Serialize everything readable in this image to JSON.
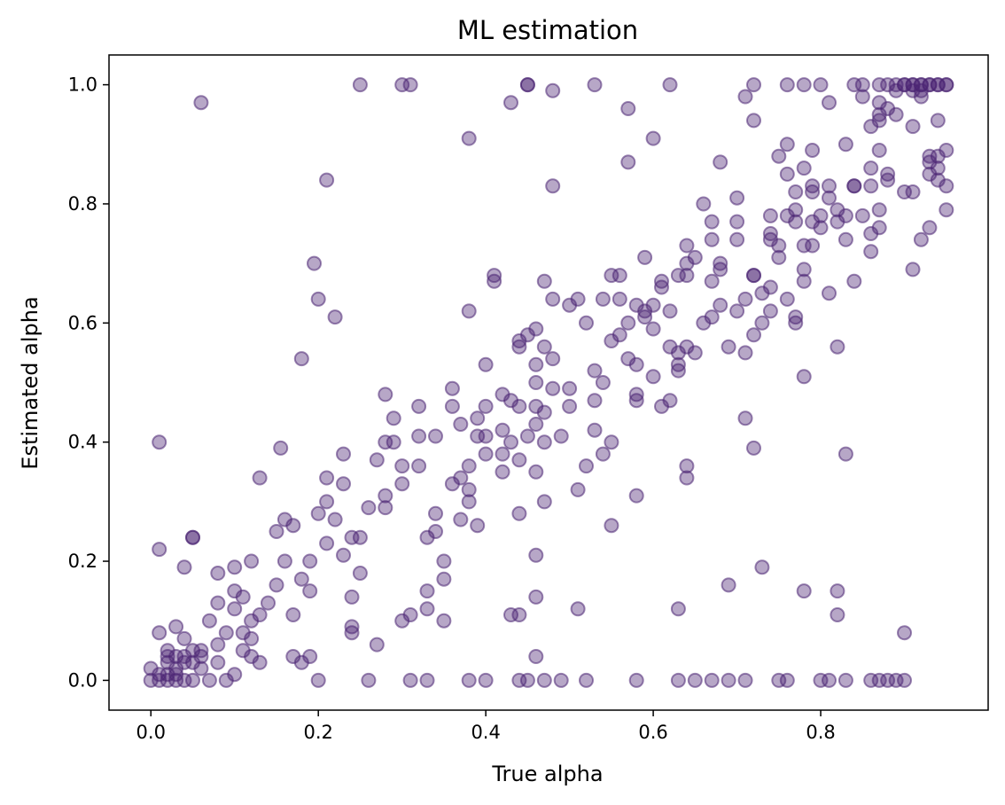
{
  "chart_data": {
    "type": "scatter",
    "title": "ML estimation",
    "xlabel": "True alpha",
    "ylabel": "Estimated alpha",
    "xlim": [
      -0.05,
      1.0
    ],
    "ylim": [
      -0.05,
      1.05
    ],
    "xticks": [
      "0.0",
      "0.2",
      "0.4",
      "0.6",
      "0.8"
    ],
    "yticks": [
      "0.0",
      "0.2",
      "0.4",
      "0.6",
      "0.8",
      "1.0"
    ],
    "grid": false,
    "marker_color": "#4b2472",
    "points": [
      [
        0.0,
        0.02
      ],
      [
        0.0,
        0.0
      ],
      [
        0.01,
        0.0
      ],
      [
        0.01,
        0.01
      ],
      [
        0.02,
        0.0
      ],
      [
        0.02,
        0.01
      ],
      [
        0.02,
        0.04
      ],
      [
        0.02,
        0.05
      ],
      [
        0.03,
        0.0
      ],
      [
        0.03,
        0.02
      ],
      [
        0.03,
        0.04
      ],
      [
        0.03,
        0.09
      ],
      [
        0.04,
        0.0
      ],
      [
        0.04,
        0.04
      ],
      [
        0.04,
        0.07
      ],
      [
        0.05,
        0.03
      ],
      [
        0.05,
        0.05
      ],
      [
        0.06,
        0.02
      ],
      [
        0.06,
        0.04
      ],
      [
        0.07,
        0.1
      ],
      [
        0.08,
        0.03
      ],
      [
        0.08,
        0.06
      ],
      [
        0.09,
        0.08
      ],
      [
        0.1,
        0.01
      ],
      [
        0.1,
        0.12
      ],
      [
        0.11,
        0.05
      ],
      [
        0.11,
        0.08
      ],
      [
        0.12,
        0.04
      ],
      [
        0.12,
        0.07
      ],
      [
        0.13,
        0.03
      ],
      [
        0.01,
        0.08
      ],
      [
        0.02,
        0.03
      ],
      [
        0.03,
        0.01
      ],
      [
        0.04,
        0.03
      ],
      [
        0.05,
        0.0
      ],
      [
        0.06,
        0.05
      ],
      [
        0.07,
        0.0
      ],
      [
        0.08,
        0.13
      ],
      [
        0.09,
        0.0
      ],
      [
        0.1,
        0.15
      ],
      [
        0.11,
        0.14
      ],
      [
        0.12,
        0.1
      ],
      [
        0.13,
        0.11
      ],
      [
        0.14,
        0.13
      ],
      [
        0.15,
        0.16
      ],
      [
        0.16,
        0.2
      ],
      [
        0.17,
        0.04
      ],
      [
        0.18,
        0.03
      ],
      [
        0.19,
        0.04
      ],
      [
        0.2,
        0.0
      ],
      [
        0.01,
        0.22
      ],
      [
        0.01,
        0.4
      ],
      [
        0.05,
        0.24
      ],
      [
        0.05,
        0.24
      ],
      [
        0.04,
        0.19
      ],
      [
        0.08,
        0.18
      ],
      [
        0.1,
        0.19
      ],
      [
        0.12,
        0.2
      ],
      [
        0.13,
        0.34
      ],
      [
        0.15,
        0.25
      ],
      [
        0.06,
        0.97
      ],
      [
        0.155,
        0.39
      ],
      [
        0.16,
        0.27
      ],
      [
        0.17,
        0.26
      ],
      [
        0.17,
        0.11
      ],
      [
        0.18,
        0.17
      ],
      [
        0.18,
        0.54
      ],
      [
        0.19,
        0.2
      ],
      [
        0.19,
        0.15
      ],
      [
        0.2,
        0.28
      ],
      [
        0.21,
        0.23
      ],
      [
        0.21,
        0.3
      ],
      [
        0.2,
        0.64
      ],
      [
        0.195,
        0.7
      ],
      [
        0.21,
        0.34
      ],
      [
        0.22,
        0.61
      ],
      [
        0.22,
        0.27
      ],
      [
        0.23,
        0.21
      ],
      [
        0.23,
        0.33
      ],
      [
        0.23,
        0.38
      ],
      [
        0.21,
        0.84
      ],
      [
        0.24,
        0.24
      ],
      [
        0.24,
        0.14
      ],
      [
        0.24,
        0.09
      ],
      [
        0.24,
        0.08
      ],
      [
        0.25,
        0.18
      ],
      [
        0.25,
        0.24
      ],
      [
        0.26,
        0.0
      ],
      [
        0.26,
        0.29
      ],
      [
        0.27,
        0.37
      ],
      [
        0.25,
        1.0
      ],
      [
        0.27,
        0.06
      ],
      [
        0.28,
        0.29
      ],
      [
        0.28,
        0.31
      ],
      [
        0.28,
        0.48
      ],
      [
        0.28,
        0.4
      ],
      [
        0.29,
        0.44
      ],
      [
        0.29,
        0.4
      ],
      [
        0.3,
        0.36
      ],
      [
        0.3,
        0.33
      ],
      [
        0.3,
        1.0
      ],
      [
        0.31,
        1.0
      ],
      [
        0.3,
        0.1
      ],
      [
        0.31,
        0.0
      ],
      [
        0.31,
        0.11
      ],
      [
        0.32,
        0.46
      ],
      [
        0.32,
        0.41
      ],
      [
        0.32,
        0.36
      ],
      [
        0.33,
        0.24
      ],
      [
        0.33,
        0.15
      ],
      [
        0.33,
        0.12
      ],
      [
        0.33,
        0.0
      ],
      [
        0.34,
        0.28
      ],
      [
        0.34,
        0.41
      ],
      [
        0.34,
        0.25
      ],
      [
        0.35,
        0.2
      ],
      [
        0.35,
        0.17
      ],
      [
        0.35,
        0.1
      ],
      [
        0.36,
        0.46
      ],
      [
        0.36,
        0.49
      ],
      [
        0.36,
        0.33
      ],
      [
        0.37,
        0.43
      ],
      [
        0.37,
        0.27
      ],
      [
        0.37,
        0.34
      ],
      [
        0.38,
        0.36
      ],
      [
        0.38,
        0.32
      ],
      [
        0.38,
        0.3
      ],
      [
        0.38,
        0.0
      ],
      [
        0.38,
        0.62
      ],
      [
        0.38,
        0.91
      ],
      [
        0.39,
        0.41
      ],
      [
        0.39,
        0.44
      ],
      [
        0.39,
        0.26
      ],
      [
        0.4,
        0.46
      ],
      [
        0.4,
        0.41
      ],
      [
        0.4,
        0.38
      ],
      [
        0.4,
        0.53
      ],
      [
        0.4,
        0.0
      ],
      [
        0.41,
        0.68
      ],
      [
        0.41,
        0.67
      ],
      [
        0.42,
        0.48
      ],
      [
        0.42,
        0.42
      ],
      [
        0.42,
        0.35
      ],
      [
        0.42,
        0.38
      ],
      [
        0.43,
        0.47
      ],
      [
        0.43,
        0.4
      ],
      [
        0.43,
        0.11
      ],
      [
        0.43,
        0.97
      ],
      [
        0.44,
        0.57
      ],
      [
        0.44,
        0.56
      ],
      [
        0.44,
        0.46
      ],
      [
        0.44,
        0.37
      ],
      [
        0.44,
        0.11
      ],
      [
        0.44,
        0.0
      ],
      [
        0.44,
        0.28
      ],
      [
        0.45,
        0.58
      ],
      [
        0.45,
        1.0
      ],
      [
        0.45,
        0.41
      ],
      [
        0.45,
        0.0
      ],
      [
        0.45,
        1.0
      ],
      [
        0.46,
        0.53
      ],
      [
        0.46,
        0.5
      ],
      [
        0.46,
        0.46
      ],
      [
        0.46,
        0.43
      ],
      [
        0.46,
        0.35
      ],
      [
        0.46,
        0.21
      ],
      [
        0.46,
        0.14
      ],
      [
        0.46,
        0.04
      ],
      [
        0.46,
        0.59
      ],
      [
        0.47,
        0.56
      ],
      [
        0.47,
        0.45
      ],
      [
        0.47,
        0.4
      ],
      [
        0.47,
        0.3
      ],
      [
        0.47,
        0.67
      ],
      [
        0.47,
        0.0
      ],
      [
        0.48,
        0.99
      ],
      [
        0.48,
        0.83
      ],
      [
        0.48,
        0.54
      ],
      [
        0.48,
        0.49
      ],
      [
        0.48,
        0.64
      ],
      [
        0.49,
        0.41
      ],
      [
        0.49,
        0.0
      ],
      [
        0.5,
        0.63
      ],
      [
        0.5,
        0.49
      ],
      [
        0.5,
        0.46
      ],
      [
        0.51,
        0.64
      ],
      [
        0.51,
        0.32
      ],
      [
        0.51,
        0.12
      ],
      [
        0.52,
        0.36
      ],
      [
        0.52,
        0.6
      ],
      [
        0.52,
        0.0
      ],
      [
        0.53,
        0.52
      ],
      [
        0.53,
        0.47
      ],
      [
        0.53,
        0.42
      ],
      [
        0.53,
        1.0
      ],
      [
        0.54,
        0.64
      ],
      [
        0.54,
        0.5
      ],
      [
        0.54,
        0.38
      ],
      [
        0.55,
        0.68
      ],
      [
        0.55,
        0.57
      ],
      [
        0.55,
        0.4
      ],
      [
        0.55,
        0.26
      ],
      [
        0.56,
        0.68
      ],
      [
        0.56,
        0.58
      ],
      [
        0.56,
        0.64
      ],
      [
        0.57,
        0.54
      ],
      [
        0.57,
        0.6
      ],
      [
        0.57,
        0.96
      ],
      [
        0.57,
        0.87
      ],
      [
        0.58,
        0.63
      ],
      [
        0.58,
        0.53
      ],
      [
        0.58,
        0.48
      ],
      [
        0.58,
        0.47
      ],
      [
        0.58,
        0.31
      ],
      [
        0.58,
        0.0
      ],
      [
        0.59,
        0.61
      ],
      [
        0.59,
        0.62
      ],
      [
        0.59,
        0.71
      ],
      [
        0.6,
        0.63
      ],
      [
        0.6,
        0.59
      ],
      [
        0.6,
        0.51
      ],
      [
        0.6,
        0.91
      ],
      [
        0.61,
        0.67
      ],
      [
        0.61,
        0.66
      ],
      [
        0.61,
        0.46
      ],
      [
        0.62,
        0.56
      ],
      [
        0.62,
        0.47
      ],
      [
        0.62,
        1.0
      ],
      [
        0.62,
        0.62
      ],
      [
        0.63,
        0.52
      ],
      [
        0.63,
        0.53
      ],
      [
        0.63,
        0.55
      ],
      [
        0.63,
        0.68
      ],
      [
        0.63,
        0.12
      ],
      [
        0.63,
        0.0
      ],
      [
        0.64,
        0.73
      ],
      [
        0.64,
        0.7
      ],
      [
        0.64,
        0.68
      ],
      [
        0.64,
        0.56
      ],
      [
        0.64,
        0.34
      ],
      [
        0.64,
        0.36
      ],
      [
        0.65,
        0.71
      ],
      [
        0.65,
        0.55
      ],
      [
        0.65,
        0.0
      ],
      [
        0.66,
        0.8
      ],
      [
        0.66,
        0.6
      ],
      [
        0.67,
        0.74
      ],
      [
        0.67,
        0.67
      ],
      [
        0.67,
        0.77
      ],
      [
        0.67,
        0.61
      ],
      [
        0.67,
        0.0
      ],
      [
        0.68,
        0.7
      ],
      [
        0.68,
        0.69
      ],
      [
        0.68,
        0.87
      ],
      [
        0.68,
        0.63
      ],
      [
        0.69,
        0.56
      ],
      [
        0.69,
        0.16
      ],
      [
        0.69,
        0.0
      ],
      [
        0.7,
        0.81
      ],
      [
        0.7,
        0.74
      ],
      [
        0.7,
        0.62
      ],
      [
        0.7,
        0.77
      ],
      [
        0.71,
        0.98
      ],
      [
        0.71,
        0.64
      ],
      [
        0.71,
        0.55
      ],
      [
        0.71,
        0.44
      ],
      [
        0.71,
        0.0
      ],
      [
        0.72,
        0.94
      ],
      [
        0.72,
        0.68
      ],
      [
        0.72,
        0.68
      ],
      [
        0.72,
        0.58
      ],
      [
        0.72,
        0.39
      ],
      [
        0.72,
        1.0
      ],
      [
        0.73,
        0.19
      ],
      [
        0.73,
        0.65
      ],
      [
        0.73,
        0.6
      ],
      [
        0.74,
        0.78
      ],
      [
        0.74,
        0.75
      ],
      [
        0.74,
        0.74
      ],
      [
        0.74,
        0.62
      ],
      [
        0.74,
        0.66
      ],
      [
        0.75,
        0.73
      ],
      [
        0.75,
        0.71
      ],
      [
        0.75,
        0.88
      ],
      [
        0.75,
        0.0
      ],
      [
        0.76,
        1.0
      ],
      [
        0.76,
        0.9
      ],
      [
        0.76,
        0.78
      ],
      [
        0.76,
        0.85
      ],
      [
        0.76,
        0.64
      ],
      [
        0.76,
        0.0
      ],
      [
        0.77,
        0.82
      ],
      [
        0.77,
        0.79
      ],
      [
        0.77,
        0.77
      ],
      [
        0.77,
        0.61
      ],
      [
        0.77,
        0.6
      ],
      [
        0.78,
        0.86
      ],
      [
        0.78,
        0.73
      ],
      [
        0.78,
        0.69
      ],
      [
        0.78,
        0.67
      ],
      [
        0.78,
        1.0
      ],
      [
        0.78,
        0.51
      ],
      [
        0.78,
        0.15
      ],
      [
        0.79,
        0.82
      ],
      [
        0.79,
        0.83
      ],
      [
        0.79,
        0.89
      ],
      [
        0.79,
        0.77
      ],
      [
        0.79,
        0.73
      ],
      [
        0.8,
        0.76
      ],
      [
        0.8,
        0.78
      ],
      [
        0.8,
        1.0
      ],
      [
        0.8,
        0.0
      ],
      [
        0.81,
        0.81
      ],
      [
        0.81,
        0.83
      ],
      [
        0.81,
        0.65
      ],
      [
        0.81,
        0.97
      ],
      [
        0.81,
        0.0
      ],
      [
        0.82,
        0.79
      ],
      [
        0.82,
        0.77
      ],
      [
        0.82,
        0.56
      ],
      [
        0.82,
        0.15
      ],
      [
        0.82,
        0.11
      ],
      [
        0.83,
        0.78
      ],
      [
        0.83,
        0.74
      ],
      [
        0.83,
        0.9
      ],
      [
        0.83,
        0.38
      ],
      [
        0.83,
        0.0
      ],
      [
        0.84,
        0.83
      ],
      [
        0.84,
        0.83
      ],
      [
        0.84,
        0.67
      ],
      [
        0.84,
        1.0
      ],
      [
        0.85,
        0.78
      ],
      [
        0.85,
        1.0
      ],
      [
        0.85,
        0.98
      ],
      [
        0.86,
        0.93
      ],
      [
        0.86,
        0.86
      ],
      [
        0.86,
        0.83
      ],
      [
        0.86,
        0.75
      ],
      [
        0.86,
        0.72
      ],
      [
        0.86,
        0.0
      ],
      [
        0.87,
        1.0
      ],
      [
        0.87,
        0.97
      ],
      [
        0.87,
        0.95
      ],
      [
        0.87,
        0.94
      ],
      [
        0.87,
        0.89
      ],
      [
        0.87,
        0.79
      ],
      [
        0.87,
        0.76
      ],
      [
        0.87,
        0.0
      ],
      [
        0.88,
        1.0
      ],
      [
        0.88,
        0.96
      ],
      [
        0.88,
        0.85
      ],
      [
        0.88,
        0.84
      ],
      [
        0.88,
        0.0
      ],
      [
        0.89,
        1.0
      ],
      [
        0.89,
        0.99
      ],
      [
        0.89,
        0.95
      ],
      [
        0.89,
        0.0
      ],
      [
        0.9,
        1.0
      ],
      [
        0.9,
        0.82
      ],
      [
        0.9,
        0.08
      ],
      [
        0.9,
        0.0
      ],
      [
        0.91,
        1.0
      ],
      [
        0.91,
        0.99
      ],
      [
        0.91,
        0.93
      ],
      [
        0.91,
        0.82
      ],
      [
        0.91,
        0.69
      ],
      [
        0.92,
        1.0
      ],
      [
        0.92,
        0.99
      ],
      [
        0.92,
        0.98
      ],
      [
        0.92,
        0.74
      ],
      [
        0.93,
        1.0
      ],
      [
        0.93,
        0.85
      ],
      [
        0.93,
        0.87
      ],
      [
        0.93,
        0.76
      ],
      [
        0.94,
        1.0
      ],
      [
        0.94,
        0.88
      ],
      [
        0.94,
        0.86
      ],
      [
        0.94,
        0.84
      ],
      [
        0.94,
        0.94
      ],
      [
        0.95,
        1.0
      ],
      [
        0.95,
        0.89
      ],
      [
        0.95,
        0.83
      ],
      [
        0.95,
        0.79
      ],
      [
        0.93,
        1.0
      ],
      [
        0.94,
        1.0
      ],
      [
        0.95,
        1.0
      ],
      [
        0.92,
        1.0
      ],
      [
        0.91,
        1.0
      ],
      [
        0.9,
        1.0
      ],
      [
        0.93,
        0.88
      ]
    ]
  }
}
